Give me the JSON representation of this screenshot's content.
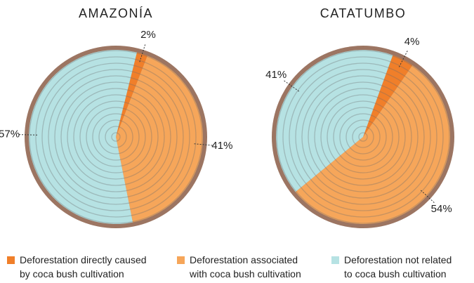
{
  "chart_data": [
    {
      "type": "pie",
      "title": "AMAZONÍA",
      "categories": [
        "Deforestation directly caused by coca bush cultivation",
        "Deforestation associated with coca bush cultivation",
        "Deforestation not related to coca bush cultivation"
      ],
      "values": [
        2,
        41,
        57
      ],
      "value_labels": [
        "2%",
        "41%",
        "57%"
      ],
      "colors": [
        "#f07f2a",
        "#f6a65a",
        "#b6e2e3"
      ]
    },
    {
      "type": "pie",
      "title": "CATATUMBO",
      "categories": [
        "Deforestation directly caused by coca bush cultivation",
        "Deforestation associated with coca bush cultivation",
        "Deforestation not related to coca bush cultivation"
      ],
      "values": [
        4,
        54,
        41
      ],
      "value_labels": [
        "4%",
        "54%",
        "41%"
      ],
      "colors": [
        "#f07f2a",
        "#f6a65a",
        "#b6e2e3"
      ]
    }
  ]
}
